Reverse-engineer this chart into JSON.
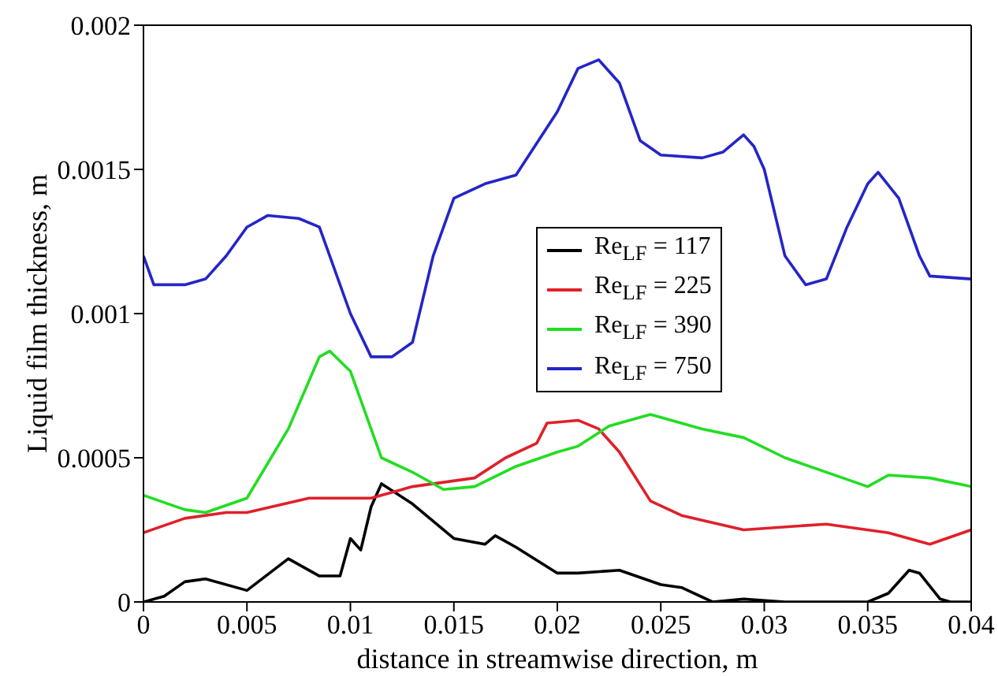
{
  "chart_data": {
    "type": "line",
    "xlabel": "distance in streamwise direction, m",
    "ylabel": "Liquid film thickness, m",
    "xlim": [
      0,
      0.04
    ],
    "xticks": [
      0,
      0.005,
      0.01,
      0.015,
      0.02,
      0.025,
      0.03,
      0.035,
      0.04
    ],
    "ylim": [
      0,
      0.002
    ],
    "yticks": [
      0,
      0.0005,
      0.001,
      0.0015,
      0.002
    ],
    "legend": "right",
    "marker": "none",
    "line_style": "solid",
    "series": [
      {
        "name": "Re$_{LF}$ = 117",
        "color": "#000000",
        "x": [
          0,
          0.001,
          0.002,
          0.003,
          0.005,
          0.007,
          0.0085,
          0.0095,
          0.01,
          0.0105,
          0.011,
          0.0115,
          0.013,
          0.015,
          0.0165,
          0.017,
          0.018,
          0.02,
          0.021,
          0.023,
          0.025,
          0.026,
          0.0275,
          0.029,
          0.031,
          0.035,
          0.036,
          0.037,
          0.0375,
          0.0385,
          0.039,
          0.04
        ],
        "values": [
          0,
          2e-05,
          7e-05,
          8e-05,
          4e-05,
          0.00015,
          9e-05,
          9e-05,
          0.00022,
          0.00018,
          0.00033,
          0.00041,
          0.00034,
          0.00022,
          0.0002,
          0.00023,
          0.00019,
          0.0001,
          0.0001,
          0.00011,
          6e-05,
          5e-05,
          0,
          1e-05,
          0,
          0,
          3e-05,
          0.00011,
          0.0001,
          1e-05,
          0,
          0
        ]
      },
      {
        "name": "Re$_{LF}$ = 225",
        "color": "#e0202a",
        "x": [
          0,
          0.002,
          0.004,
          0.005,
          0.008,
          0.011,
          0.013,
          0.016,
          0.0175,
          0.019,
          0.0195,
          0.021,
          0.022,
          0.023,
          0.0245,
          0.026,
          0.029,
          0.033,
          0.036,
          0.038,
          0.04
        ],
        "values": [
          0.00024,
          0.00029,
          0.00031,
          0.00031,
          0.00036,
          0.00036,
          0.0004,
          0.00043,
          0.0005,
          0.00055,
          0.00062,
          0.00063,
          0.0006,
          0.00052,
          0.00035,
          0.0003,
          0.00025,
          0.00027,
          0.00024,
          0.0002,
          0.00025
        ]
      },
      {
        "name": "Re$_{LF}$ = 390",
        "color": "#22dd22",
        "x": [
          0,
          0.002,
          0.003,
          0.005,
          0.007,
          0.0085,
          0.009,
          0.01,
          0.0115,
          0.013,
          0.0145,
          0.016,
          0.018,
          0.02,
          0.021,
          0.0225,
          0.0245,
          0.027,
          0.029,
          0.031,
          0.035,
          0.036,
          0.038,
          0.04
        ],
        "values": [
          0.00037,
          0.00032,
          0.00031,
          0.00036,
          0.0006,
          0.00085,
          0.00087,
          0.0008,
          0.0005,
          0.00045,
          0.00039,
          0.0004,
          0.00047,
          0.00052,
          0.00054,
          0.00061,
          0.00065,
          0.0006,
          0.00057,
          0.0005,
          0.0004,
          0.00044,
          0.00043,
          0.0004
        ]
      },
      {
        "name": "Re$_{LF}$ = 750",
        "color": "#2525c8",
        "x": [
          0,
          0.0005,
          0.002,
          0.003,
          0.004,
          0.005,
          0.006,
          0.0075,
          0.0085,
          0.01,
          0.011,
          0.012,
          0.013,
          0.014,
          0.015,
          0.0165,
          0.018,
          0.02,
          0.021,
          0.022,
          0.023,
          0.024,
          0.025,
          0.027,
          0.028,
          0.029,
          0.0295,
          0.03,
          0.031,
          0.032,
          0.033,
          0.034,
          0.035,
          0.0355,
          0.0365,
          0.0375,
          0.038,
          0.04
        ],
        "values": [
          0.0012,
          0.0011,
          0.0011,
          0.00112,
          0.0012,
          0.0013,
          0.00134,
          0.00133,
          0.0013,
          0.001,
          0.00085,
          0.00085,
          0.0009,
          0.0012,
          0.0014,
          0.00145,
          0.00148,
          0.0017,
          0.00185,
          0.00188,
          0.0018,
          0.0016,
          0.00155,
          0.00154,
          0.00156,
          0.00162,
          0.00158,
          0.0015,
          0.0012,
          0.0011,
          0.00112,
          0.0013,
          0.00145,
          0.00149,
          0.0014,
          0.0012,
          0.00113,
          0.00112
        ]
      }
    ]
  }
}
